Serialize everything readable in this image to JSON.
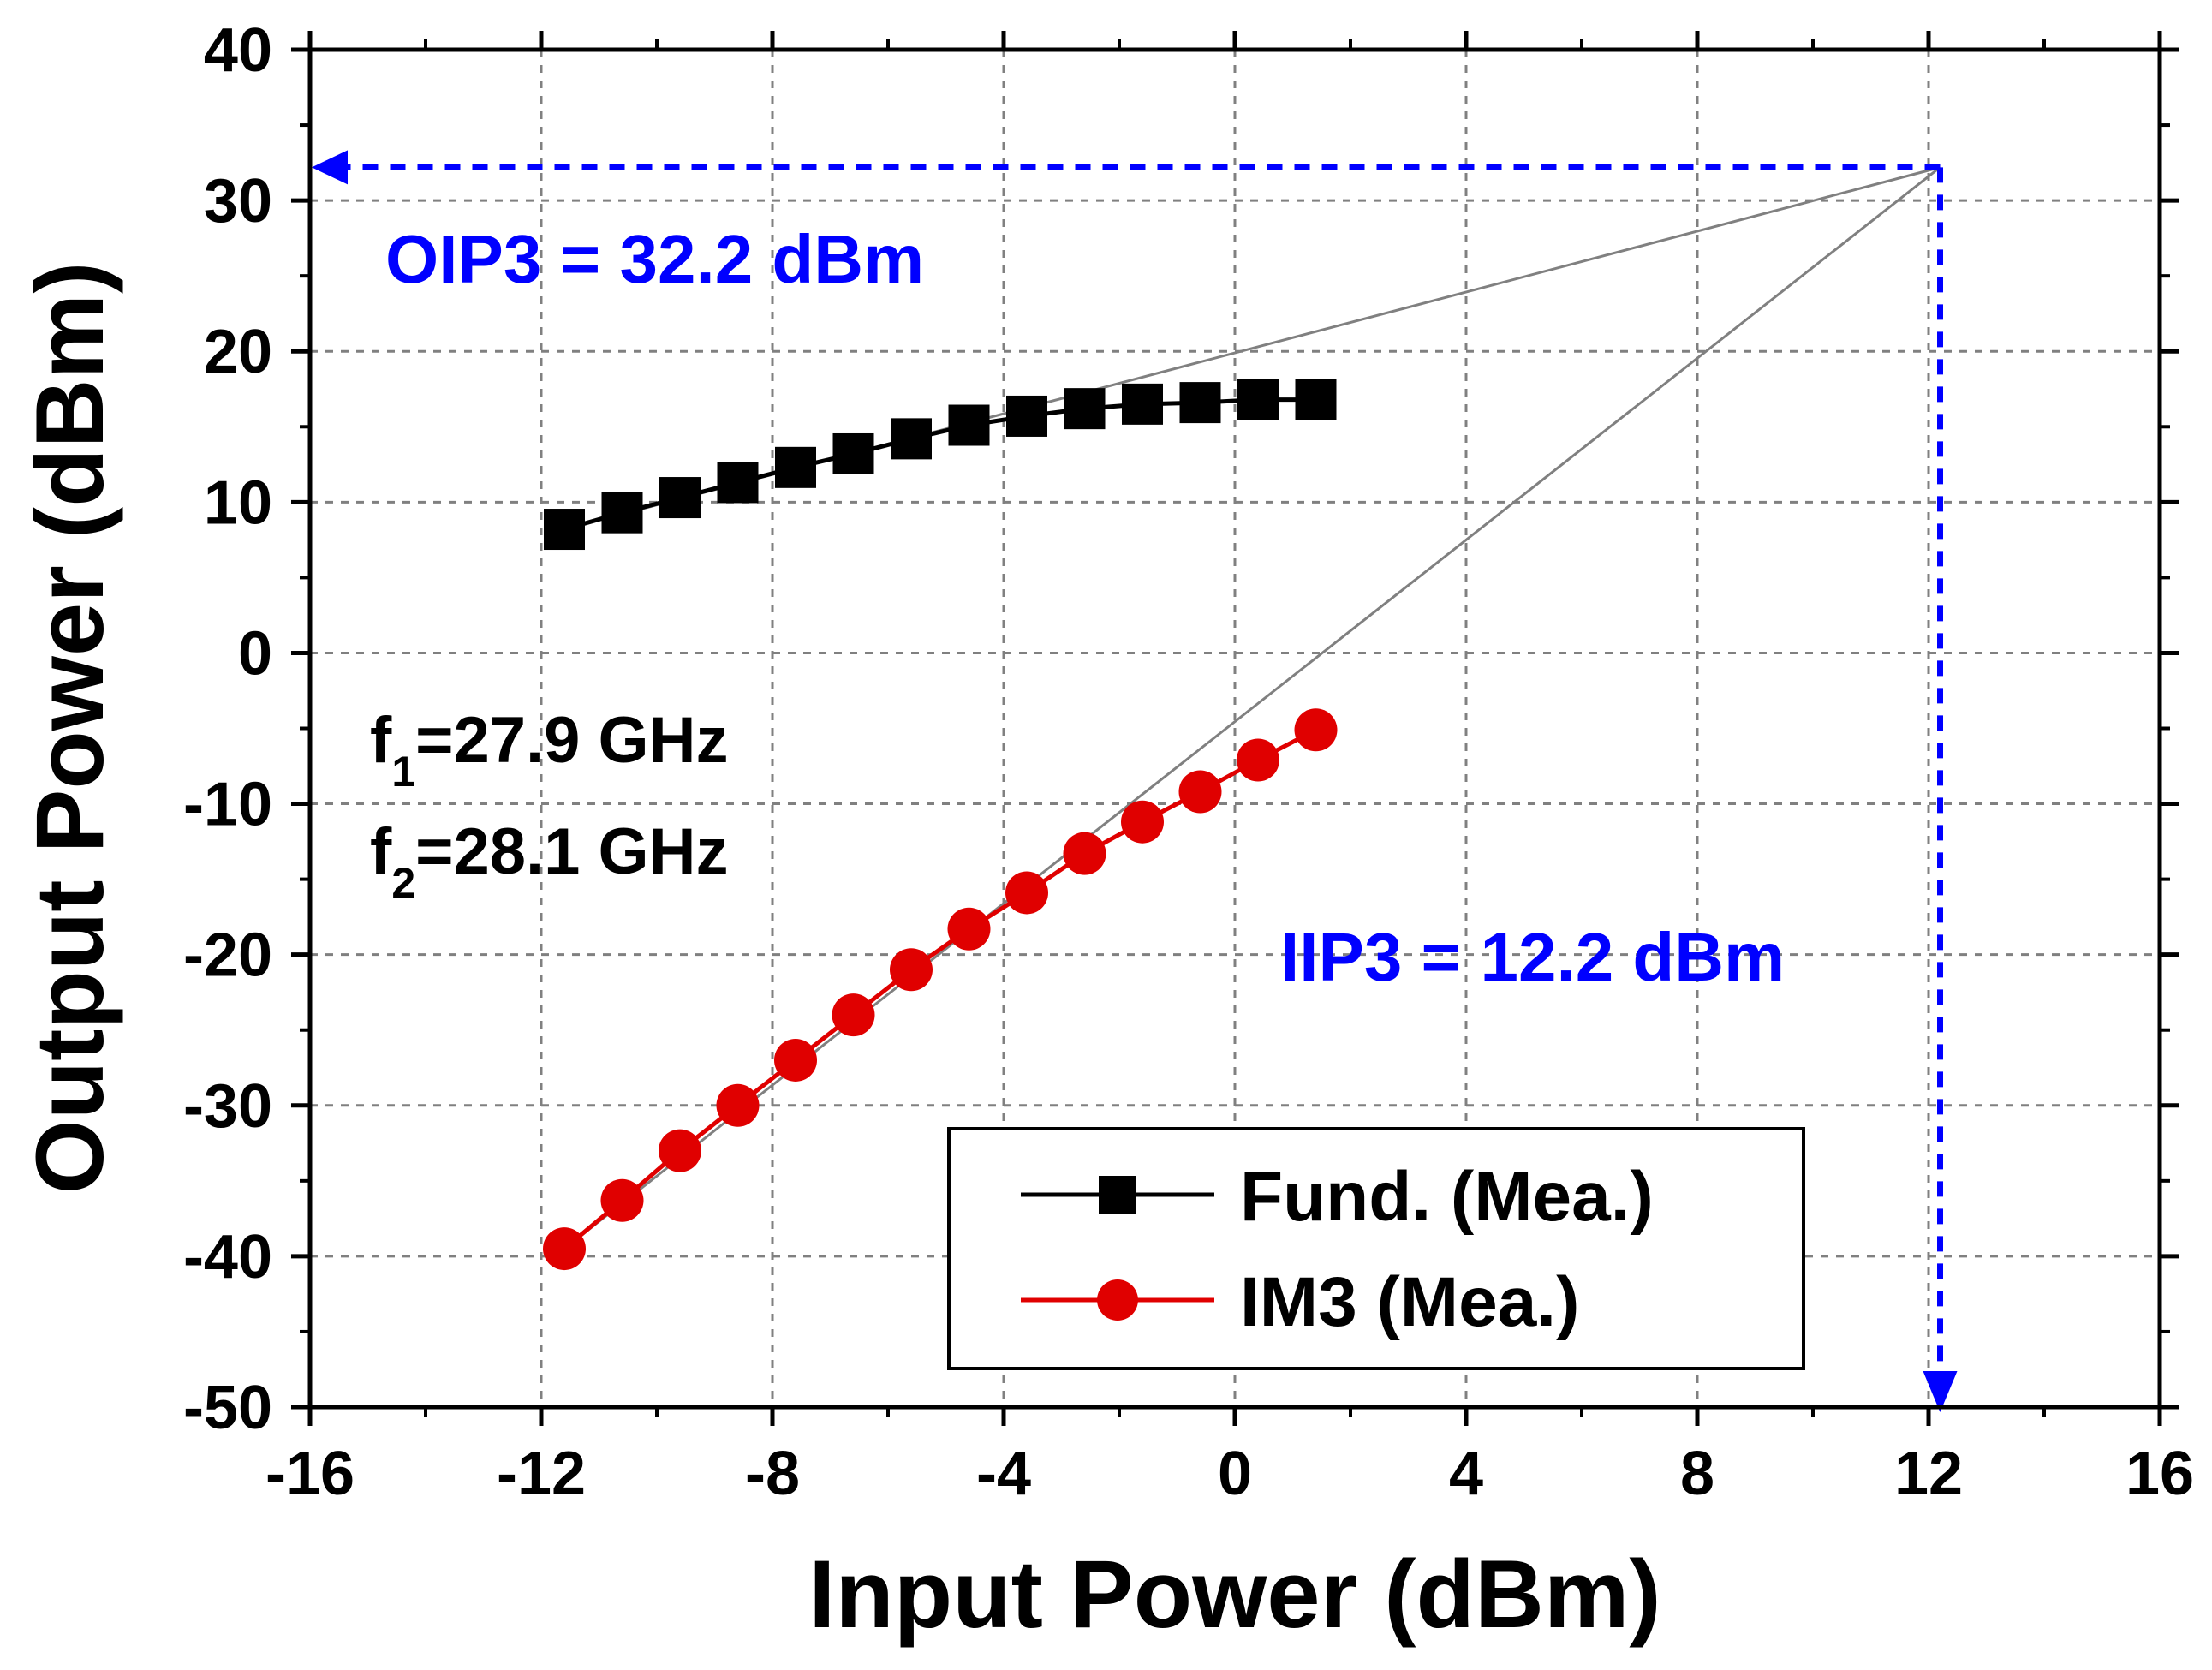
{
  "chart_data": {
    "type": "line",
    "xlabel": "Input Power (dBm)",
    "ylabel": "Output Power (dBm)",
    "xlim": [
      -16,
      16
    ],
    "ylim": [
      -50,
      40
    ],
    "xticks": [
      -16,
      -12,
      -8,
      -4,
      0,
      4,
      8,
      12,
      16
    ],
    "yticks": [
      -50,
      -40,
      -30,
      -20,
      -10,
      0,
      10,
      20,
      30,
      40
    ],
    "grid": true,
    "legend_position": "bottom-right",
    "series": [
      {
        "name": "Fund. (Mea.)",
        "color": "#000000",
        "marker": "square",
        "x": [
          -11.6,
          -10.6,
          -9.6,
          -8.6,
          -7.6,
          -6.6,
          -5.6,
          -4.6,
          -3.6,
          -2.6,
          -1.6,
          -0.6,
          0.4,
          1.4
        ],
        "y": [
          8.2,
          9.3,
          10.3,
          11.3,
          12.3,
          13.2,
          14.2,
          15.1,
          15.7,
          16.2,
          16.5,
          16.6,
          16.8,
          16.8
        ]
      },
      {
        "name": "IM3 (Mea.)",
        "color": "#e00000",
        "marker": "circle",
        "x": [
          -11.6,
          -10.6,
          -9.6,
          -8.6,
          -7.6,
          -6.6,
          -5.6,
          -4.6,
          -3.6,
          -2.6,
          -1.6,
          -0.6,
          0.4,
          1.4
        ],
        "y": [
          -39.5,
          -36.3,
          -33.0,
          -30.0,
          -27.0,
          -24.0,
          -21.0,
          -18.3,
          -15.9,
          -13.3,
          -11.2,
          -9.2,
          -7.1,
          -5.1
        ]
      }
    ],
    "extrapolation": {
      "color": "#808080",
      "intercept_point": [
        12.2,
        32.2
      ],
      "fund_from": [
        -11.6,
        8.2
      ],
      "im3_from": [
        -11.6,
        -39.5
      ]
    },
    "annotations": {
      "color": "#0000ff",
      "oip3_label": "OIP3 = 32.2 dBm",
      "iip3_label": "IIP3 = 12.2 dBm",
      "oip3_value": 32.2,
      "iip3_value": 12.2,
      "f1_sym": "f",
      "f1_sub": "1",
      "f1_text": "=27.9 GHz",
      "f2_sym": "f",
      "f2_sub": "2",
      "f2_text": "=28.1 GHz"
    }
  }
}
